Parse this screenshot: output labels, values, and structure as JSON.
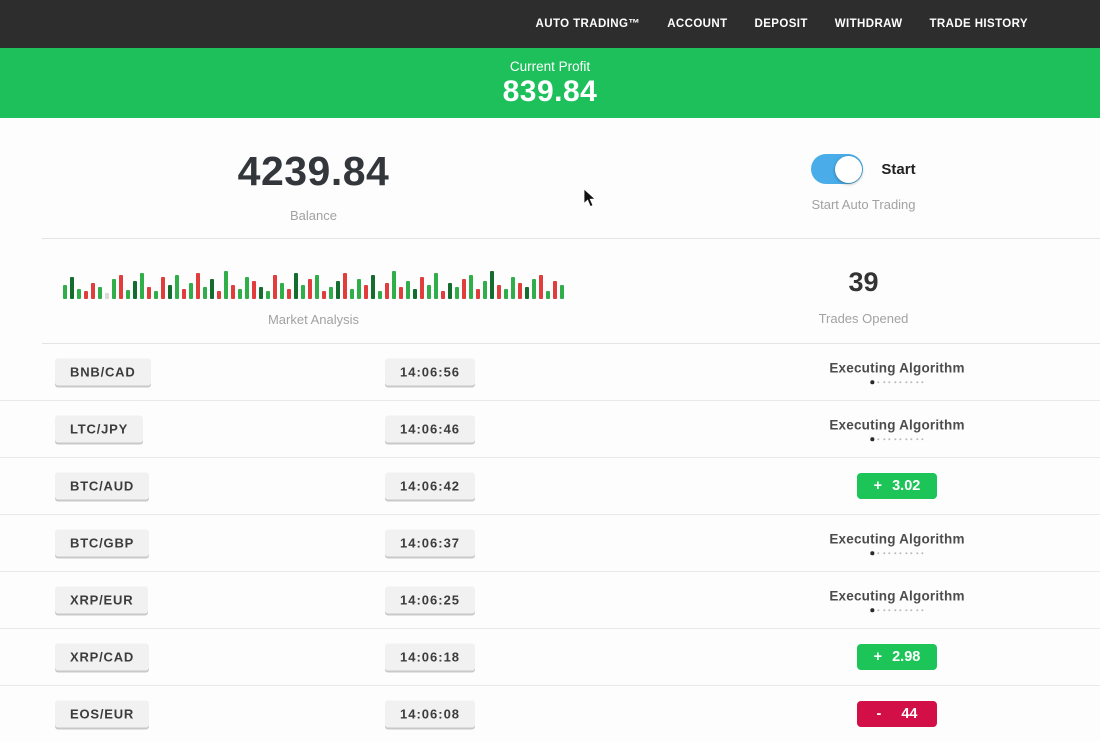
{
  "nav": {
    "items": [
      "AUTO TRADING™",
      "ACCOUNT",
      "DEPOSIT",
      "WITHDRAW",
      "TRADE HISTORY"
    ]
  },
  "banner": {
    "label": "Current Profit",
    "value": "839.84",
    "bg": "#1ec05c"
  },
  "stats": {
    "balance": {
      "value": "4239.84",
      "label": "Balance"
    },
    "auto_trading": {
      "toggle_label": "Start",
      "label": "Start Auto Trading",
      "toggle_on": true,
      "toggle_color": "#4aade9"
    },
    "market_analysis": {
      "label": "Market Analysis",
      "palette": {
        "g": "#2fae4a",
        "G": "#146c2e",
        "r": "#e23d3d",
        "R": "#9c1f1f",
        "l": "#d9d9d9"
      },
      "bars": [
        "g14",
        "G22",
        "g10",
        "r8",
        "r16",
        "g12",
        "l6",
        "g20",
        "r24",
        "g9",
        "G18",
        "g26",
        "r12",
        "g8",
        "r22",
        "G14",
        "g24",
        "r10",
        "g16",
        "r26",
        "g12",
        "G20",
        "r8",
        "g28",
        "r14",
        "g10",
        "g22",
        "r18",
        "G12",
        "g8",
        "r24",
        "g16",
        "r10",
        "G26",
        "g14",
        "r20",
        "g24",
        "r8",
        "g12",
        "G18",
        "r26",
        "g10",
        "g20",
        "r14",
        "G24",
        "g8",
        "r16",
        "g28",
        "r12",
        "g18",
        "G10",
        "r22",
        "g14",
        "g26",
        "r8",
        "G16",
        "g12",
        "r20",
        "g24",
        "r10",
        "g18",
        "G28",
        "r14",
        "g10",
        "g22",
        "r16",
        "G12",
        "g20",
        "r24",
        "g8",
        "r18",
        "g14"
      ]
    },
    "trades_opened": {
      "value": "39",
      "label": "Trades Opened"
    }
  },
  "trades_config": {
    "executing_label": "Executing Algorithm",
    "dots_count": 10,
    "profit_color": "#1dc458",
    "loss_color": "#d20f46"
  },
  "trades": [
    {
      "pair": "BNB/CAD",
      "time": "14:06:56",
      "status": "executing"
    },
    {
      "pair": "LTC/JPY",
      "time": "14:06:46",
      "status": "executing"
    },
    {
      "pair": "BTC/AUD",
      "time": "14:06:42",
      "status": "profit",
      "sign": "+",
      "value": "3.02"
    },
    {
      "pair": "BTC/GBP",
      "time": "14:06:37",
      "status": "executing"
    },
    {
      "pair": "XRP/EUR",
      "time": "14:06:25",
      "status": "executing"
    },
    {
      "pair": "XRP/CAD",
      "time": "14:06:18",
      "status": "profit",
      "sign": "+",
      "value": "2.98"
    },
    {
      "pair": "EOS/EUR",
      "time": "14:06:08",
      "status": "loss",
      "sign": "-",
      "value": "44"
    }
  ]
}
